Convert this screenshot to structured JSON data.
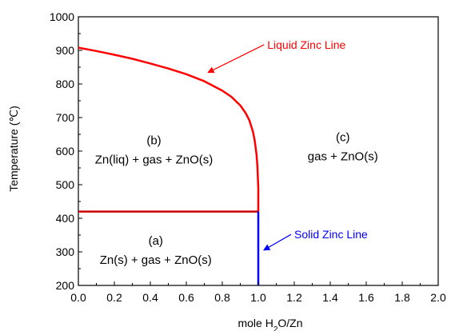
{
  "chart_data": {
    "type": "line",
    "xlabel_prefix": "mole H",
    "xlabel_sub": "2",
    "xlabel_suffix": "O/Zn",
    "ylabel": "Temperature (℃)",
    "xlim": [
      0.0,
      2.0
    ],
    "ylim": [
      200,
      1000
    ],
    "xticks": [
      "0.0",
      "0.2",
      "0.4",
      "0.6",
      "0.8",
      "1.0",
      "1.2",
      "1.4",
      "1.6",
      "1.8",
      "2.0"
    ],
    "yticks": [
      "200",
      "300",
      "400",
      "500",
      "600",
      "700",
      "800",
      "900",
      "1000"
    ],
    "grid": false,
    "series": [
      {
        "name": "Liquid Zinc Line",
        "color": "#ff0000",
        "x": [
          0.0,
          0.1,
          0.2,
          0.3,
          0.4,
          0.5,
          0.6,
          0.7,
          0.8,
          0.85,
          0.9,
          0.93,
          0.95,
          0.97,
          0.98,
          0.99,
          0.995,
          1.0,
          1.0
        ],
        "y": [
          908,
          898,
          887,
          875,
          861,
          846,
          829,
          808,
          780,
          762,
          736,
          713,
          692,
          658,
          632,
          590,
          555,
          490,
          420
        ]
      },
      {
        "name": "",
        "color": "#cc0000",
        "x": [
          0.0,
          1.0
        ],
        "y": [
          420,
          420
        ]
      },
      {
        "name": "Solid Zinc Line",
        "color": "#0000ff",
        "x": [
          1.0,
          1.0
        ],
        "y": [
          420,
          200
        ]
      }
    ],
    "annotations": [
      {
        "text": "Liquid Zinc Line",
        "color": "#ff0000",
        "x": 1.05,
        "y": 905,
        "arrow_to": [
          0.72,
          834
        ]
      },
      {
        "text": "Solid Zinc Line",
        "color": "#0000ff",
        "x": 1.2,
        "y": 340,
        "arrow_to": [
          1.03,
          305
        ]
      }
    ],
    "regions": [
      {
        "lines": [
          "(b)",
          "Zn(liq) + gas  + ZnO(s)"
        ],
        "x": 0.42,
        "y": 620
      },
      {
        "lines": [
          "(c)",
          "gas + ZnO(s)"
        ],
        "x": 1.47,
        "y": 630
      },
      {
        "lines": [
          "(a)",
          "Zn(s) + gas + ZnO(s)"
        ],
        "x": 0.43,
        "y": 322
      }
    ]
  }
}
